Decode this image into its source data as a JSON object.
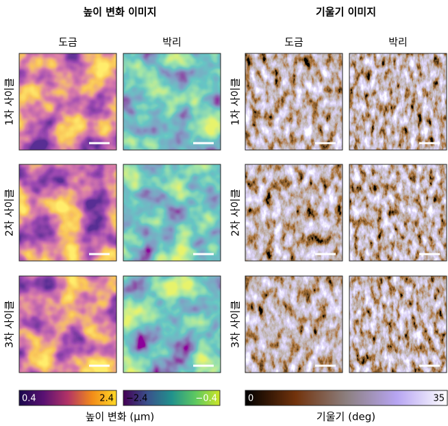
{
  "titles": {
    "height": "높이 변화 이미지",
    "slope": "기울기 이미지"
  },
  "columns": [
    "도금",
    "박리",
    "도금",
    "박리"
  ],
  "rows": [
    "1차 사이클",
    "2차 사이클",
    "3차 사이클"
  ],
  "colorbars": [
    {
      "min": "0.4",
      "max": "2.4"
    },
    {
      "min": "−2.4",
      "max": "−0.4"
    },
    {
      "min": "0",
      "max": "35"
    }
  ],
  "colorbar_labels": [
    "높이 변화 (μm)",
    "기울기 (deg)"
  ]
}
